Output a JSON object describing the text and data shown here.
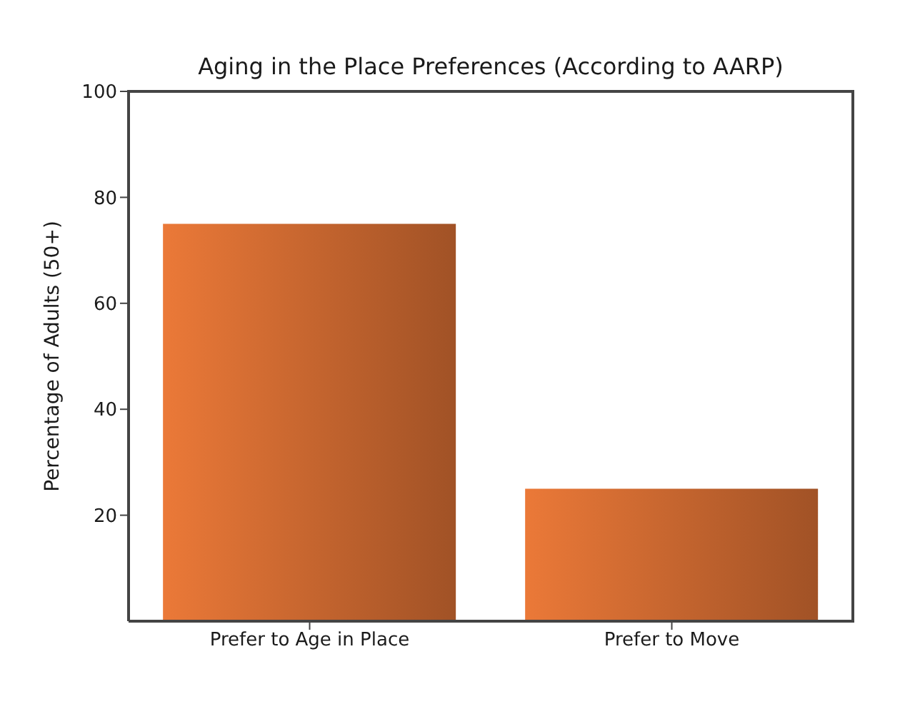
{
  "chart_data": {
    "type": "bar",
    "title": "Aging in the Place Preferences (According to AARP)",
    "ylabel": "Percentage of Adults (50+)",
    "categories": [
      "Prefer to Age in Place",
      "Prefer to Move"
    ],
    "values": [
      75,
      25
    ],
    "color": "#c96730",
    "ylim": [
      0,
      100
    ],
    "yticks": [
      20,
      40,
      60,
      80,
      100
    ]
  }
}
